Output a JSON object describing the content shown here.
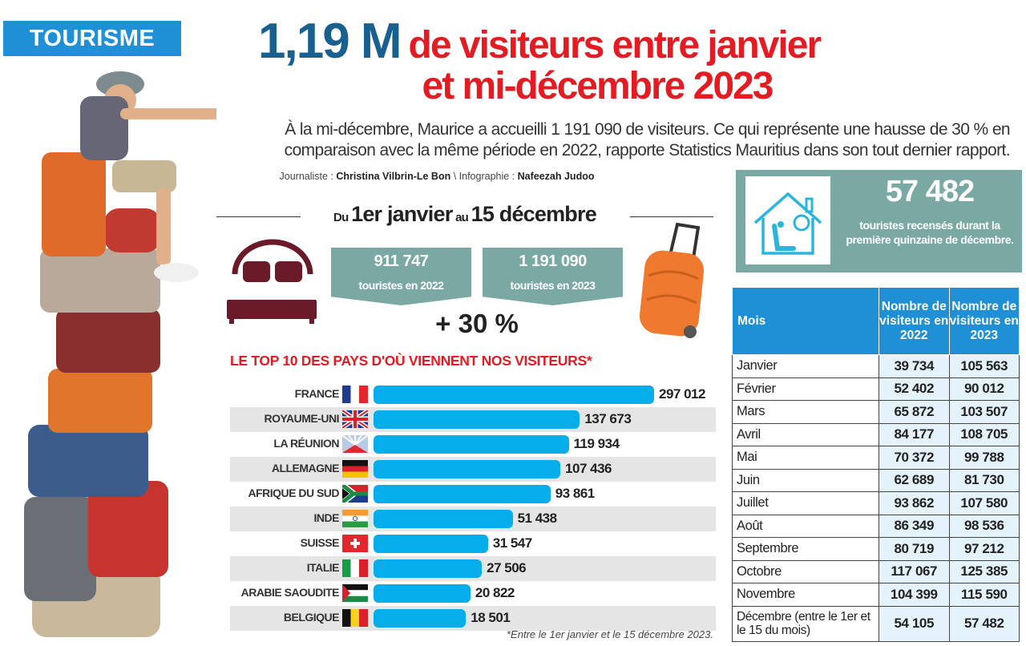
{
  "section_badge": "TOURISME",
  "headline": {
    "big": "1,19 M",
    "rest_line1": "de visiteurs entre janvier",
    "line2": "et mi-décembre 2023"
  },
  "intro": "À la mi-décembre, Maurice a accueilli 1 191 090 de visiteurs. Ce qui représente une hausse de 30 % en comparaison avec la même période en 2022, rapporte Statistics Mauritius dans son tout dernier rapport.",
  "credits": {
    "journalist_label": "Journaliste : ",
    "journalist": "Christina Vilbrin-Le Bon",
    "sep": " \\ Infographie : ",
    "designer": "Nafeezah Judoo"
  },
  "period": {
    "du": "Du",
    "start": "1er janvier",
    "au": "au",
    "end": "15 décembre"
  },
  "totals": [
    {
      "value": "911 747",
      "label": "touristes en 2022"
    },
    {
      "value": "1 191 090",
      "label": "touristes en 2023"
    }
  ],
  "growth": "+ 30 %",
  "highlight": {
    "value": "57 482",
    "label": "touristes recensés durant la première quinzaine de décembre."
  },
  "colors": {
    "blue": "#1f8fd6",
    "red": "#e31b23",
    "teal": "#7aa9a3",
    "bar": "#05aeea",
    "headline_blue": "#17608f"
  },
  "chart_data": {
    "type": "bar",
    "orientation": "horizontal",
    "title": "LE TOP 10 DES PAYS D'OÙ VIENNENT NOS VISITEURS*",
    "categories": [
      "FRANCE",
      "ROYAUME-UNI",
      "LA RÉUNION",
      "ALLEMAGNE",
      "AFRIQUE DU SUD",
      "INDE",
      "SUISSE",
      "ITALIE",
      "ARABIE SAOUDITE",
      "BELGIQUE"
    ],
    "values": [
      297012,
      137673,
      119934,
      107436,
      93861,
      51438,
      31547,
      27506,
      20822,
      18501
    ],
    "value_labels": [
      "297 012",
      "137 673",
      "119 934",
      "107 436",
      "93 861",
      "51 438",
      "31 547",
      "27 506",
      "20 822",
      "18 501"
    ],
    "flags": [
      "fr",
      "gb",
      "re",
      "de",
      "za",
      "in",
      "ch",
      "it",
      "sa",
      "be"
    ],
    "footnote": "*Entre le 1er janvier et le 15 décembre 2023."
  },
  "table": {
    "headers": [
      "Mois",
      "Nombre de visiteurs en 2022",
      "Nombre de visiteurs en 2023"
    ],
    "rows": [
      [
        "Janvier",
        "39 734",
        "105 563"
      ],
      [
        "Février",
        "52 402",
        "90 012"
      ],
      [
        "Mars",
        "65 872",
        "103 507"
      ],
      [
        "Avril",
        "84 177",
        "108 705"
      ],
      [
        "Mai",
        "70 372",
        "99 788"
      ],
      [
        "Juin",
        "62 689",
        "81 730"
      ],
      [
        "Juillet",
        "93 862",
        "107 580"
      ],
      [
        "Août",
        "86 349",
        "98 536"
      ],
      [
        "Septembre",
        "80 719",
        "97 212"
      ],
      [
        "Octobre",
        "117 067",
        "125 385"
      ],
      [
        "Novembre",
        "104 399",
        "115 590"
      ],
      [
        "Décembre (entre le 1er et le 15 du mois)",
        "54 105",
        "57 482"
      ]
    ]
  }
}
